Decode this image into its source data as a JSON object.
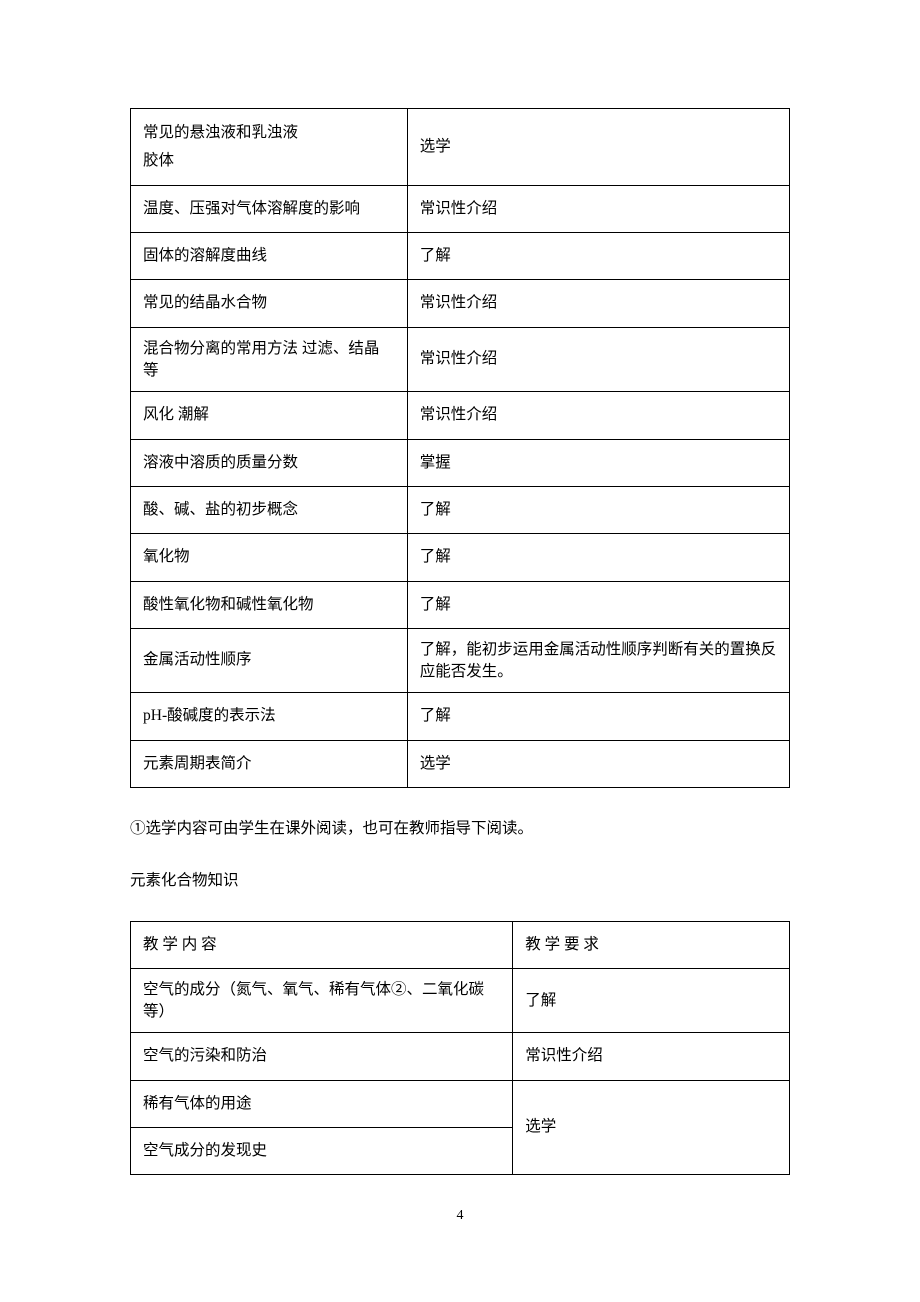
{
  "table1": {
    "rows": [
      {
        "left": "常见的悬浊液和乳浊液\n胶体",
        "right": "选学",
        "mergeRight": false,
        "leftRowspan": 1,
        "multiLineLeft": true
      },
      {
        "left": "温度、压强对气体溶解度的影响",
        "right": "常识性介绍"
      },
      {
        "left": "固体的溶解度曲线",
        "right": "了解"
      },
      {
        "left": "常见的结晶水合物",
        "right": "常识性介绍"
      },
      {
        "left": "混合物分离的常用方法 过滤、结晶等",
        "right": "常识性介绍",
        "tightLeft": true
      },
      {
        "left": "风化 潮解",
        "right": "常识性介绍"
      },
      {
        "left": "溶液中溶质的质量分数",
        "right": "掌握"
      },
      {
        "left": "酸、碱、盐的初步概念",
        "right": "了解"
      },
      {
        "left": "氧化物",
        "right": "了解"
      },
      {
        "left": "酸性氧化物和碱性氧化物",
        "right": "了解"
      },
      {
        "left": "金属活动性顺序",
        "right": "了解，能初步运用金属活动性顺序判断有关的置换反应能否发生。"
      },
      {
        "left": "pH-酸碱度的表示法",
        "right": "了解"
      },
      {
        "left": "元素周期表简介",
        "right": "选学"
      }
    ]
  },
  "note1": "①选学内容可由学生在课外阅读，也可在教师指导下阅读。",
  "section_title": "元素化合物知识",
  "table2": {
    "header": {
      "left": "教 学 内 容",
      "right": "教 学 要 求"
    },
    "rows": [
      {
        "left": "空气的成分（氮气、氧气、稀有气体②、二氧化碳等）",
        "right": "了解",
        "tightLeft": true
      },
      {
        "left": "空气的污染和防治",
        "right": "常识性介绍"
      },
      {
        "left": "稀有气体的用途",
        "right": "选学",
        "rightRowspan": 2
      },
      {
        "left": "空气成分的发现史",
        "right": null
      }
    ]
  },
  "page_number": "4"
}
